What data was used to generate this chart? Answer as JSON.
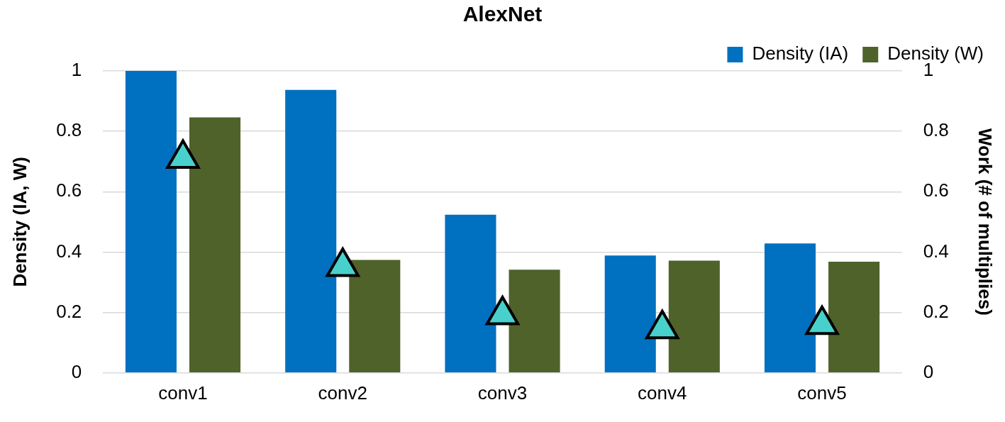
{
  "chart_data": {
    "type": "bar",
    "title": "AlexNet",
    "ylabel": "Density (IA, W)",
    "y2label": "Work (# of multiplies)",
    "categories": [
      "conv1",
      "conv2",
      "conv3",
      "conv4",
      "conv5"
    ],
    "series": [
      {
        "name": "Density (IA)",
        "color": "#0070c0",
        "values": [
          1.0,
          0.937,
          0.524,
          0.389,
          0.429
        ]
      },
      {
        "name": "Density (W)",
        "color": "#4f622a",
        "values": [
          0.846,
          0.374,
          0.342,
          0.372,
          0.368
        ]
      },
      {
        "type": "scatter",
        "axis": "y2",
        "color": "#48d1cc",
        "marker": "triangle",
        "x": [
          "conv1",
          "conv2",
          "conv3",
          "conv4",
          "conv5"
        ],
        "values": [
          0.71,
          0.352,
          0.192,
          0.146,
          0.16
        ]
      }
    ],
    "ylim": [
      0,
      1
    ],
    "yticks": [
      0,
      0.2,
      0.4,
      0.6,
      0.8,
      1
    ],
    "y2lim": [
      0,
      1
    ],
    "y2ticks": [
      0,
      0.2,
      0.4,
      0.6,
      0.8,
      1
    ],
    "grid": "y",
    "legend": "top right"
  }
}
